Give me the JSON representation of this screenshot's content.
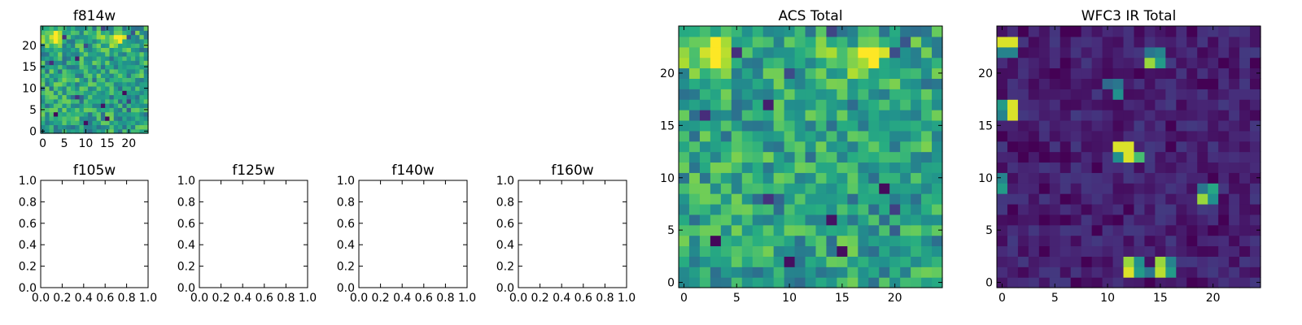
{
  "chart_data": [
    {
      "type": "heatmap",
      "colormap": "viridis",
      "title": "f814w",
      "xlim": [
        -0.5,
        24.5
      ],
      "ylim": [
        -0.5,
        24.5
      ],
      "xticks": [
        0,
        5,
        10,
        15,
        20
      ],
      "yticks": [
        0,
        5,
        10,
        15,
        20
      ],
      "xtick_labels": [
        "0",
        "5",
        "10",
        "15",
        "20"
      ],
      "ytick_labels": [
        "0",
        "5",
        "10",
        "15",
        "20"
      ],
      "grid_size": 25,
      "texture_seed": 11,
      "bright_blobs": [
        {
          "x": 2.5,
          "y": 22,
          "sx": 2.0,
          "sy": 1.8,
          "amp": 0.55
        },
        {
          "x": 16.5,
          "y": 21.5,
          "sx": 3.5,
          "sy": 1.3,
          "amp": 0.45
        }
      ],
      "base_mean": 0.58,
      "noise": 0.22
    },
    {
      "type": "empty",
      "title": "f105w",
      "xlim": [
        0,
        1
      ],
      "ylim": [
        0,
        1
      ],
      "xticks": [
        0.0,
        0.2,
        0.4,
        0.6,
        0.8,
        1.0
      ],
      "xtick_labels": [
        "0.0",
        "0.2",
        "0.4",
        "0.6",
        "0.8",
        "1.0"
      ],
      "yticks": [
        0.0,
        0.2,
        0.4,
        0.6,
        0.8,
        1.0
      ],
      "ytick_labels": [
        "0.0",
        "0.2",
        "0.4",
        "0.6",
        "0.8",
        "1.0"
      ]
    },
    {
      "type": "empty",
      "title": "f125w",
      "xlim": [
        0,
        1
      ],
      "ylim": [
        0,
        1
      ],
      "xticks": [
        0.0,
        0.2,
        0.4,
        0.6,
        0.8,
        1.0
      ],
      "xtick_labels": [
        "0.0",
        "0.2",
        "0.4",
        "0.6",
        "0.8",
        "1.0"
      ],
      "yticks": [
        0.0,
        0.2,
        0.4,
        0.6,
        0.8,
        1.0
      ],
      "ytick_labels": [
        "0.0",
        "0.2",
        "0.4",
        "0.6",
        "0.8",
        "1.0"
      ]
    },
    {
      "type": "empty",
      "title": "f140w",
      "xlim": [
        0,
        1
      ],
      "ylim": [
        0,
        1
      ],
      "xticks": [
        0.0,
        0.2,
        0.4,
        0.6,
        0.8,
        1.0
      ],
      "xtick_labels": [
        "0.0",
        "0.2",
        "0.4",
        "0.6",
        "0.8",
        "1.0"
      ],
      "yticks": [
        0.0,
        0.2,
        0.4,
        0.6,
        0.8,
        1.0
      ],
      "ytick_labels": [
        "0.0",
        "0.2",
        "0.4",
        "0.6",
        "0.8",
        "1.0"
      ]
    },
    {
      "type": "empty",
      "title": "f160w",
      "xlim": [
        0,
        1
      ],
      "ylim": [
        0,
        1
      ],
      "xticks": [
        0.0,
        0.2,
        0.4,
        0.6,
        0.8,
        1.0
      ],
      "xtick_labels": [
        "0.0",
        "0.2",
        "0.4",
        "0.6",
        "0.8",
        "1.0"
      ],
      "yticks": [
        0.0,
        0.2,
        0.4,
        0.6,
        0.8,
        1.0
      ],
      "ytick_labels": [
        "0.0",
        "0.2",
        "0.4",
        "0.6",
        "0.8",
        "1.0"
      ]
    },
    {
      "type": "heatmap",
      "colormap": "viridis",
      "title": "ACS Total",
      "xlim": [
        -0.5,
        24.5
      ],
      "ylim": [
        -0.5,
        24.5
      ],
      "xticks": [
        0,
        5,
        10,
        15,
        20
      ],
      "yticks": [
        0,
        5,
        10,
        15,
        20
      ],
      "xtick_labels": [
        "0",
        "5",
        "10",
        "15",
        "20"
      ],
      "ytick_labels": [
        "0",
        "5",
        "10",
        "15",
        "20"
      ],
      "grid_size": 25,
      "texture_seed": 11,
      "bright_blobs": [
        {
          "x": 2.5,
          "y": 22,
          "sx": 2.0,
          "sy": 1.8,
          "amp": 0.55
        },
        {
          "x": 16.5,
          "y": 21.5,
          "sx": 3.5,
          "sy": 1.3,
          "amp": 0.45
        }
      ],
      "base_mean": 0.58,
      "noise": 0.22
    },
    {
      "type": "heatmap",
      "colormap": "viridis",
      "title": "WFC3 IR Total",
      "xlim": [
        -0.5,
        24.5
      ],
      "ylim": [
        -0.5,
        24.5
      ],
      "xticks": [
        0,
        5,
        10,
        15,
        20
      ],
      "yticks": [
        0,
        5,
        10,
        15,
        20
      ],
      "xtick_labels": [
        "0",
        "5",
        "10",
        "15",
        "20"
      ],
      "ytick_labels": [
        "0",
        "5",
        "10",
        "15",
        "20"
      ],
      "grid_size": 25,
      "texture_seed": 29,
      "bright_pixels": [
        {
          "x": 0,
          "y": 23,
          "v": 0.95
        },
        {
          "x": 1,
          "y": 23,
          "v": 0.95
        },
        {
          "x": 0,
          "y": 22,
          "v": 0.45
        },
        {
          "x": 1,
          "y": 22,
          "v": 0.45
        },
        {
          "x": 1,
          "y": 16,
          "v": 0.95
        },
        {
          "x": 1,
          "y": 17,
          "v": 0.95
        },
        {
          "x": 0,
          "y": 17,
          "v": 0.55
        },
        {
          "x": 0,
          "y": 16,
          "v": 0.45
        },
        {
          "x": 0,
          "y": 9,
          "v": 0.55
        },
        {
          "x": 0,
          "y": 10,
          "v": 0.45
        },
        {
          "x": 14,
          "y": 21,
          "v": 0.85
        },
        {
          "x": 15,
          "y": 21,
          "v": 0.55
        },
        {
          "x": 15,
          "y": 22,
          "v": 0.45
        },
        {
          "x": 14,
          "y": 22,
          "v": 0.4
        },
        {
          "x": 11,
          "y": 19,
          "v": 0.4
        },
        {
          "x": 11,
          "y": 18,
          "v": 0.5
        },
        {
          "x": 10,
          "y": 19,
          "v": 0.35
        },
        {
          "x": 11,
          "y": 13,
          "v": 0.95
        },
        {
          "x": 12,
          "y": 13,
          "v": 0.95
        },
        {
          "x": 12,
          "y": 12,
          "v": 0.95
        },
        {
          "x": 13,
          "y": 12,
          "v": 0.7
        },
        {
          "x": 11,
          "y": 12,
          "v": 0.5
        },
        {
          "x": 19,
          "y": 8,
          "v": 0.85
        },
        {
          "x": 20,
          "y": 9,
          "v": 0.6
        },
        {
          "x": 20,
          "y": 8,
          "v": 0.5
        },
        {
          "x": 19,
          "y": 9,
          "v": 0.4
        },
        {
          "x": 12,
          "y": 1,
          "v": 0.95
        },
        {
          "x": 12,
          "y": 2,
          "v": 0.85
        },
        {
          "x": 13,
          "y": 1,
          "v": 0.55
        },
        {
          "x": 13,
          "y": 2,
          "v": 0.5
        },
        {
          "x": 15,
          "y": 1,
          "v": 0.9
        },
        {
          "x": 15,
          "y": 2,
          "v": 0.85
        },
        {
          "x": 16,
          "y": 1,
          "v": 0.55
        },
        {
          "x": 16,
          "y": 2,
          "v": 0.45
        },
        {
          "x": 14,
          "y": 1,
          "v": 0.4
        }
      ],
      "base_mean": 0.1,
      "noise": 0.08
    }
  ]
}
